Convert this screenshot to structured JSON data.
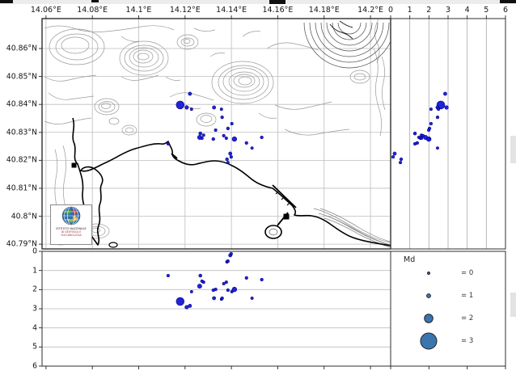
{
  "map": {
    "lon_tick_labels": [
      "14.06°E",
      "14.08°E",
      "14.1°E",
      "14.12°E",
      "14.14°E",
      "14.16°E",
      "14.18°E",
      "14.2°E"
    ],
    "lon_tick_values": [
      14.06,
      14.08,
      14.1,
      14.12,
      14.14,
      14.16,
      14.18,
      14.2
    ],
    "lat_tick_labels": [
      "40.86°N",
      "40.85°N",
      "40.84°N",
      "40.83°N",
      "40.82°N",
      "40.81°N",
      "40.8°N",
      "40.79°N"
    ],
    "lat_tick_values": [
      40.86,
      40.85,
      40.84,
      40.83,
      40.82,
      40.81,
      40.8,
      40.79
    ],
    "lon_range": [
      14.0583,
      14.2087
    ],
    "lat_range": [
      40.7883,
      40.8707
    ]
  },
  "depth_axis": {
    "tick_labels": [
      "0",
      "1",
      "2",
      "3",
      "4",
      "5",
      "6"
    ],
    "tick_values": [
      0,
      1,
      2,
      3,
      4,
      5,
      6
    ],
    "max_km": 6,
    "legend_bottom_tick_values": [
      0,
      2,
      4,
      6
    ]
  },
  "legend": {
    "title": "Md",
    "entries": [
      {
        "md": 0,
        "label": "= 0"
      },
      {
        "md": 1,
        "label": "= 1"
      },
      {
        "md": 2,
        "label": "= 2"
      },
      {
        "md": 3,
        "label": "= 3"
      }
    ]
  },
  "logo": {
    "line1": "ISTITUTO NAZIONALE",
    "line2": "DI GEOFISICA E VULCANOLOGIA"
  },
  "colors": {
    "event_fill": "#1717d6",
    "event_edge": "#000082",
    "legend_fill": "#3a75ae",
    "legend_edge": "#1b1b1b",
    "grid": "#bdbdbd",
    "grid_right": "#a8a8a8",
    "panel_frame": "#2e2e2e",
    "tick": "#222222",
    "contour": "#9a9a9a",
    "coast": "#000000",
    "label": "#141414"
  },
  "chart_data": {
    "type": "scatter",
    "panels": [
      {
        "id": "map",
        "x_field": "lon",
        "y_field": "lat",
        "xlim": [
          14.0583,
          14.2087
        ],
        "ylim": [
          40.7883,
          40.8707
        ],
        "grid": true
      },
      {
        "id": "depth_vs_lat",
        "x_field": "depth_km",
        "y_field": "lat",
        "xlim": [
          0,
          6
        ],
        "grid": true
      },
      {
        "id": "lon_vs_depth",
        "x_field": "lon",
        "y_field": "depth_km",
        "ylim": [
          6,
          0
        ],
        "grid": true
      }
    ],
    "size_scale": {
      "field": "md",
      "legend_values": [
        0,
        1,
        2,
        3
      ]
    },
    "events": [
      {
        "lon": 14.1179,
        "lat": 40.8398,
        "depth_km": 2.62,
        "md": 1.9
      },
      {
        "lon": 14.1207,
        "lat": 40.8389,
        "depth_km": 2.92,
        "md": 0.9
      },
      {
        "lon": 14.1221,
        "lat": 40.8438,
        "depth_km": 2.85,
        "md": 0.8
      },
      {
        "lon": 14.1228,
        "lat": 40.8383,
        "depth_km": 2.11,
        "md": 0.4
      },
      {
        "lon": 14.1325,
        "lat": 40.8389,
        "depth_km": 2.45,
        "md": 0.8
      },
      {
        "lon": 14.1357,
        "lat": 40.8383,
        "depth_km": 2.5,
        "md": 0.4
      },
      {
        "lon": 14.136,
        "lat": 40.8354,
        "depth_km": 2.45,
        "md": 0.6
      },
      {
        "lon": 14.1402,
        "lat": 40.8331,
        "depth_km": 2.11,
        "md": 0.5
      },
      {
        "lon": 14.1385,
        "lat": 40.8314,
        "depth_km": 2.03,
        "md": 0.6
      },
      {
        "lon": 14.1332,
        "lat": 40.8308,
        "depth_km": 1.99,
        "md": 0.5
      },
      {
        "lon": 14.1266,
        "lat": 40.8296,
        "depth_km": 1.27,
        "md": 0.7
      },
      {
        "lon": 14.128,
        "lat": 40.829,
        "depth_km": 1.61,
        "md": 0.5
      },
      {
        "lon": 14.1263,
        "lat": 40.8282,
        "depth_km": 1.82,
        "md": 1.1
      },
      {
        "lon": 14.1273,
        "lat": 40.8279,
        "depth_km": 1.56,
        "md": 0.5
      },
      {
        "lon": 14.1322,
        "lat": 40.8276,
        "depth_km": 2.03,
        "md": 0.6
      },
      {
        "lon": 14.1367,
        "lat": 40.8288,
        "depth_km": 1.69,
        "md": 0.5
      },
      {
        "lon": 14.1378,
        "lat": 40.8279,
        "depth_km": 1.61,
        "md": 0.5
      },
      {
        "lon": 14.1413,
        "lat": 40.8276,
        "depth_km": 1.99,
        "md": 1.2
      },
      {
        "lon": 14.1465,
        "lat": 40.8262,
        "depth_km": 1.39,
        "md": 0.6
      },
      {
        "lon": 14.1489,
        "lat": 40.8244,
        "depth_km": 2.45,
        "md": 0.4
      },
      {
        "lon": 14.1531,
        "lat": 40.8282,
        "depth_km": 1.48,
        "md": 0.6
      },
      {
        "lon": 14.1395,
        "lat": 40.8224,
        "depth_km": 0.21,
        "md": 0.8
      },
      {
        "lon": 14.1399,
        "lat": 40.8212,
        "depth_km": 0.13,
        "md": 0.5
      },
      {
        "lon": 14.1381,
        "lat": 40.8204,
        "depth_km": 0.55,
        "md": 0.6
      },
      {
        "lon": 14.1385,
        "lat": 40.8192,
        "depth_km": 0.51,
        "md": 0.5
      },
      {
        "lon": 14.1127,
        "lat": 40.8259,
        "depth_km": 1.27,
        "md": 0.5
      }
    ]
  }
}
